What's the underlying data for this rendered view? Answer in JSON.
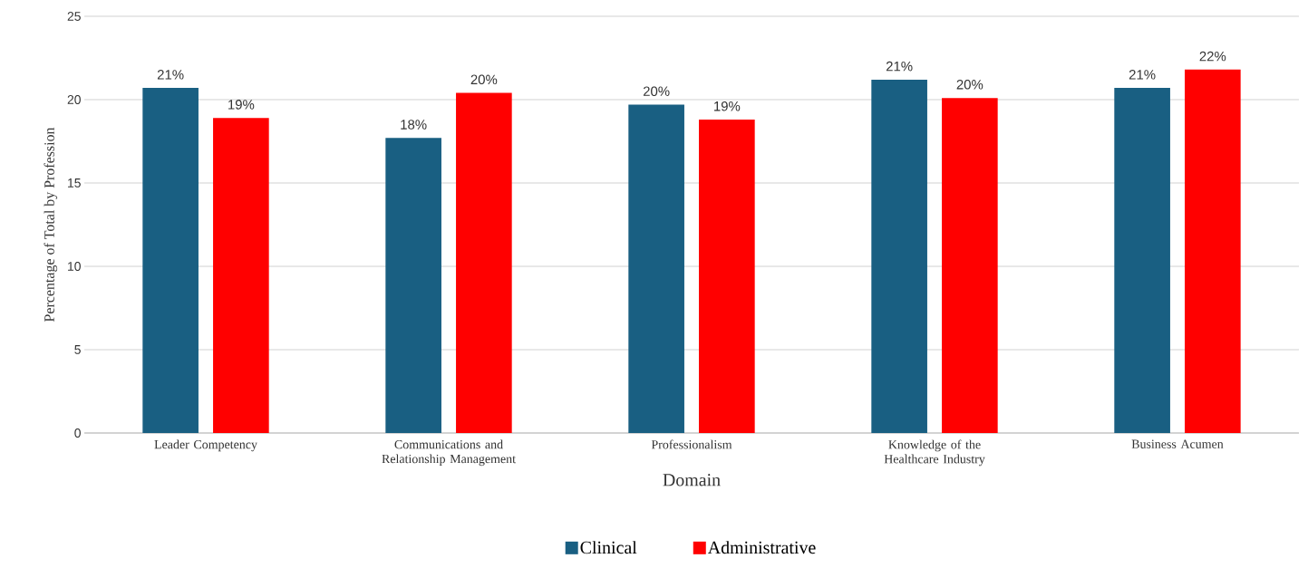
{
  "chart_data": {
    "type": "bar",
    "xlabel": "Domain",
    "ylabel": "Percentage of Total by Profession",
    "categories": [
      "Leader Competency",
      "Communications and Relationship Management",
      "Professionalism",
      "Knowledge of the Healthcare Industry",
      "Business Acumen"
    ],
    "series": [
      {
        "name": "Clinical",
        "color": "#195f82",
        "values": [
          20.7,
          17.7,
          19.7,
          21.2,
          20.7
        ],
        "value_labels": [
          "21%",
          "18%",
          "20%",
          "21%",
          "21%"
        ]
      },
      {
        "name": "Administrative",
        "color": "#ff0000",
        "values": [
          18.9,
          20.4,
          18.8,
          20.1,
          21.8
        ],
        "value_labels": [
          "19%",
          "20%",
          "19%",
          "20%",
          "22%"
        ]
      }
    ],
    "ylim": [
      0,
      25
    ],
    "yticks": [
      0,
      5,
      10,
      15,
      20,
      25
    ],
    "grid": "y",
    "legend": "bottom"
  }
}
